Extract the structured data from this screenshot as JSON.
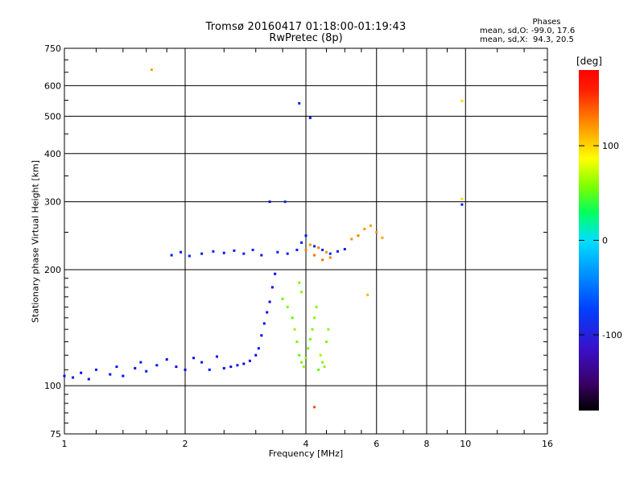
{
  "title": "Tromsø 20160417 01:18:00-01:19:43",
  "subtitle": "RwPretec (8p)",
  "phases": {
    "heading": "Phases",
    "line_o": "mean, sd,O: -99.0, 17.6",
    "line_x": "mean, sd,X:  94.3, 20.5"
  },
  "colorbar": {
    "label": "[deg]",
    "ticks": [
      "100",
      "0",
      "-100"
    ],
    "tick_values": [
      100,
      0,
      -100
    ],
    "range": [
      -180,
      180
    ]
  },
  "chart_data": {
    "type": "scatter",
    "xlabel": "Frequency [MHz]",
    "ylabel": "Stationary phase Virtual Height [km]",
    "x_scale": "log",
    "y_scale": "log",
    "xlim": [
      1,
      16
    ],
    "ylim": [
      75,
      750
    ],
    "x_ticks": [
      "1",
      "2",
      "4",
      "6",
      "8",
      "10",
      "16"
    ],
    "x_tick_values": [
      1,
      2,
      4,
      6,
      8,
      10,
      16
    ],
    "y_ticks": [
      "750",
      "600",
      "500",
      "400",
      "300",
      "200",
      "100",
      "75"
    ],
    "y_tick_values": [
      750,
      600,
      500,
      400,
      300,
      200,
      100,
      75
    ],
    "grid": true,
    "color_scale": "phase in degrees (rainbow, -180 to 180)",
    "series": [
      {
        "points": [
          [
            1.0,
            106,
            -110
          ],
          [
            1.05,
            105,
            -105
          ],
          [
            1.1,
            108,
            -112
          ],
          [
            1.15,
            104,
            -108
          ],
          [
            1.2,
            110,
            -100
          ],
          [
            1.3,
            107,
            -115
          ],
          [
            1.35,
            112,
            -105
          ],
          [
            1.4,
            106,
            -110
          ],
          [
            1.5,
            111,
            -108
          ],
          [
            1.55,
            115,
            -100
          ],
          [
            1.6,
            109,
            -112
          ],
          [
            1.7,
            113,
            -105
          ],
          [
            1.8,
            117,
            -110
          ],
          [
            1.9,
            112,
            -108
          ],
          [
            2.0,
            110,
            -115
          ],
          [
            2.1,
            118,
            -105
          ],
          [
            2.2,
            115,
            -110
          ],
          [
            2.3,
            110,
            -112
          ],
          [
            2.4,
            119,
            -108
          ],
          [
            2.5,
            111,
            -110
          ],
          [
            2.6,
            112,
            -105
          ],
          [
            2.7,
            113,
            -110
          ],
          [
            2.8,
            114,
            -108
          ],
          [
            2.9,
            116,
            -112
          ],
          [
            3.0,
            120,
            -110
          ],
          [
            3.05,
            125,
            -115
          ],
          [
            3.1,
            135,
            -120
          ],
          [
            3.15,
            145,
            -125
          ],
          [
            3.2,
            155,
            -130
          ],
          [
            3.25,
            165,
            -128
          ],
          [
            3.3,
            180,
            -130
          ],
          [
            3.35,
            195,
            -125
          ]
        ]
      },
      {
        "points": [
          [
            1.85,
            218,
            -100
          ],
          [
            1.95,
            222,
            -100
          ],
          [
            2.05,
            217,
            -95
          ],
          [
            2.2,
            220,
            -100
          ],
          [
            2.35,
            223,
            -95
          ],
          [
            2.5,
            221,
            -100
          ],
          [
            2.65,
            224,
            -98
          ],
          [
            2.8,
            220,
            -100
          ],
          [
            2.95,
            225,
            -95
          ],
          [
            3.1,
            218,
            -100
          ],
          [
            3.4,
            222,
            -95
          ],
          [
            3.6,
            220,
            -100
          ],
          [
            3.8,
            225,
            -98
          ],
          [
            3.9,
            235,
            -95
          ],
          [
            4.0,
            245,
            -100
          ],
          [
            4.2,
            230,
            -98
          ],
          [
            4.4,
            225,
            -100
          ],
          [
            4.6,
            220,
            -95
          ],
          [
            4.8,
            223,
            -98
          ],
          [
            5.0,
            226,
            -100
          ]
        ]
      },
      {
        "points": [
          [
            3.5,
            168,
            75
          ],
          [
            3.6,
            160,
            80
          ],
          [
            3.7,
            150,
            70
          ],
          [
            3.75,
            140,
            85
          ],
          [
            3.8,
            130,
            80
          ],
          [
            3.85,
            120,
            75
          ],
          [
            3.9,
            115,
            80
          ],
          [
            3.95,
            112,
            90
          ],
          [
            4.0,
            118,
            85
          ],
          [
            4.05,
            125,
            80
          ],
          [
            4.1,
            132,
            75
          ],
          [
            4.15,
            140,
            80
          ],
          [
            4.2,
            150,
            85
          ],
          [
            4.25,
            160,
            80
          ],
          [
            4.3,
            110,
            75
          ],
          [
            4.35,
            120,
            90
          ],
          [
            4.4,
            115,
            80
          ],
          [
            4.45,
            112,
            85
          ],
          [
            4.5,
            130,
            80
          ],
          [
            4.55,
            140,
            85
          ],
          [
            3.9,
            175,
            85
          ],
          [
            3.85,
            185,
            80
          ]
        ]
      },
      {
        "points": [
          [
            4.0,
            225,
            145
          ],
          [
            4.1,
            232,
            140
          ],
          [
            4.2,
            218,
            150
          ],
          [
            4.3,
            228,
            145
          ],
          [
            4.4,
            212,
            150
          ],
          [
            4.5,
            222,
            140
          ],
          [
            4.6,
            215,
            145
          ],
          [
            5.2,
            240,
            140
          ],
          [
            5.4,
            245,
            145
          ],
          [
            5.6,
            255,
            140
          ],
          [
            5.8,
            260,
            135
          ],
          [
            6.0,
            250,
            140
          ],
          [
            6.2,
            242,
            135
          ]
        ]
      },
      {
        "points": [
          [
            1.65,
            660,
            135
          ],
          [
            3.85,
            540,
            -95
          ],
          [
            4.1,
            495,
            -100
          ],
          [
            9.8,
            548,
            120
          ],
          [
            9.8,
            305,
            120
          ],
          [
            9.8,
            295,
            -100
          ],
          [
            4.2,
            88,
            160
          ],
          [
            5.7,
            172,
            130
          ],
          [
            3.55,
            300,
            -90
          ],
          [
            3.25,
            300,
            -110
          ]
        ]
      }
    ]
  }
}
